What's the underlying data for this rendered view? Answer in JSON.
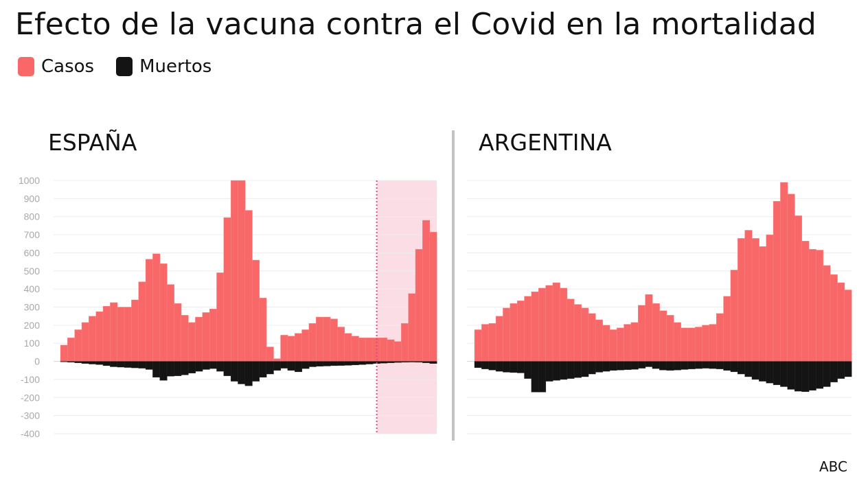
{
  "title": "Efecto de la vacuna contra el Covid en la mortalidad",
  "legend": [
    {
      "label": "Casos",
      "color": "#f86868"
    },
    {
      "label": "Muertos",
      "color": "#141414"
    }
  ],
  "source": "ABC",
  "chart_data": [
    {
      "type": "bar",
      "title": "ESPAÑA",
      "ylim": [
        -400,
        1000
      ],
      "yticks": [
        1000,
        900,
        800,
        700,
        600,
        500,
        400,
        300,
        200,
        100,
        0,
        -100,
        -200,
        -300,
        -400
      ],
      "grid": true,
      "vaccination_start_index": 44,
      "series": [
        {
          "name": "Casos",
          "values": [
            90,
            130,
            175,
            215,
            250,
            275,
            305,
            325,
            300,
            300,
            340,
            440,
            565,
            595,
            540,
            425,
            320,
            255,
            215,
            245,
            270,
            290,
            490,
            795,
            1000,
            1000,
            835,
            560,
            350,
            80,
            15,
            145,
            140,
            155,
            175,
            210,
            245,
            245,
            235,
            190,
            155,
            140,
            130,
            130,
            130,
            130,
            120,
            110,
            210,
            375,
            620,
            780,
            715
          ]
        },
        {
          "name": "Muertos",
          "values": [
            -3,
            -5,
            -8,
            -12,
            -15,
            -18,
            -24,
            -30,
            -32,
            -34,
            -36,
            -38,
            -45,
            -88,
            -105,
            -82,
            -80,
            -75,
            -65,
            -55,
            -45,
            -40,
            -55,
            -80,
            -110,
            -125,
            -135,
            -110,
            -88,
            -70,
            -50,
            -38,
            -50,
            -58,
            -40,
            -30,
            -27,
            -26,
            -24,
            -23,
            -22,
            -20,
            -18,
            -15,
            -12,
            -10,
            -8,
            -6,
            -5,
            -4,
            -5,
            -8,
            -12
          ]
        }
      ]
    },
    {
      "type": "bar",
      "title": "ARGENTINA",
      "ylim": [
        -400,
        1000
      ],
      "grid": true,
      "series": [
        {
          "name": "Casos",
          "values": [
            175,
            205,
            210,
            250,
            295,
            320,
            335,
            360,
            385,
            405,
            420,
            435,
            405,
            345,
            315,
            295,
            265,
            230,
            200,
            175,
            185,
            205,
            215,
            310,
            370,
            320,
            280,
            255,
            215,
            185,
            185,
            190,
            200,
            205,
            265,
            360,
            505,
            680,
            725,
            680,
            635,
            700,
            885,
            990,
            925,
            805,
            665,
            620,
            615,
            530,
            480,
            435,
            395
          ]
        },
        {
          "name": "Muertos",
          "values": [
            -35,
            -42,
            -48,
            -55,
            -60,
            -62,
            -64,
            -95,
            -170,
            -170,
            -110,
            -105,
            -100,
            -95,
            -90,
            -85,
            -70,
            -60,
            -55,
            -50,
            -48,
            -46,
            -44,
            -38,
            -30,
            -40,
            -48,
            -50,
            -48,
            -45,
            -42,
            -40,
            -38,
            -40,
            -42,
            -50,
            -58,
            -70,
            -85,
            -100,
            -110,
            -120,
            -130,
            -140,
            -155,
            -165,
            -168,
            -160,
            -150,
            -140,
            -115,
            -95,
            -85
          ]
        }
      ]
    }
  ]
}
